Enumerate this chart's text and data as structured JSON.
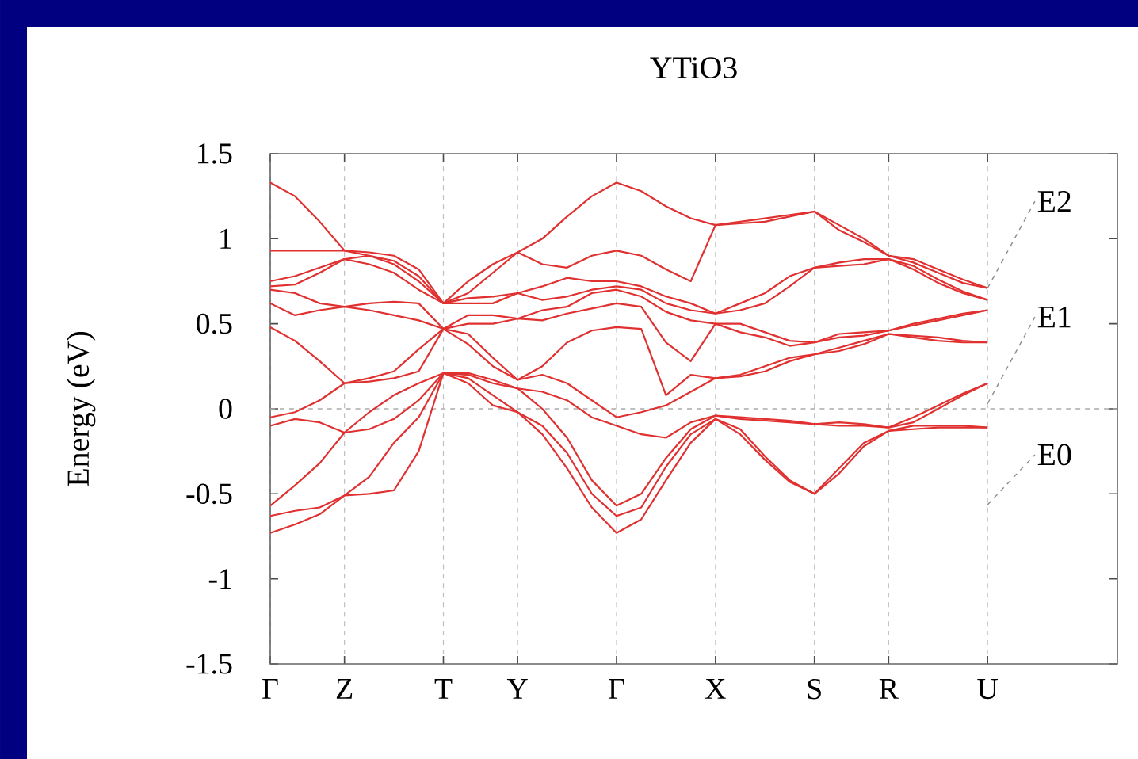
{
  "chart_data": {
    "type": "line",
    "title": "YTiO3",
    "ylabel": "Energy (eV)",
    "categories": [
      "Γ",
      null,
      null,
      "Z",
      null,
      null,
      null,
      "T",
      null,
      null,
      "Y",
      null,
      null,
      null,
      "Γ",
      null,
      null,
      null,
      "X",
      null,
      null,
      null,
      "S",
      null,
      null,
      "R",
      null,
      null,
      null,
      "U"
    ],
    "ylim": [
      -1.5,
      1.5
    ],
    "yticks": [
      -1.5,
      -1,
      -0.5,
      0,
      0.5,
      1,
      1.5
    ],
    "grid": "x",
    "marker": "none",
    "line_style": "solid",
    "ref_lines": [
      {
        "axis": "y",
        "value": 0,
        "color": "#aaaaaa",
        "line_style": "dashed"
      }
    ],
    "annotations": [
      {
        "text": "E2",
        "x": "U",
        "y": 0.71
      },
      {
        "text": "E1",
        "x": "U",
        "y": 0.03
      },
      "E0"
    ],
    "series": [
      {
        "color": "#e03030",
        "values": [
          -0.73,
          -0.68,
          -0.62,
          -0.51,
          -0.5,
          -0.48,
          -0.25,
          0.21,
          0.15,
          0.02,
          -0.02,
          -0.15,
          -0.35,
          -0.58,
          -0.73,
          -0.65,
          -0.42,
          -0.2,
          -0.06,
          -0.15,
          -0.3,
          -0.43,
          -0.5,
          -0.38,
          -0.22,
          -0.13,
          -0.12,
          -0.11,
          -0.11,
          -0.11
        ]
      },
      {
        "color": "#e03030",
        "values": [
          -0.63,
          -0.6,
          -0.58,
          -0.51,
          -0.4,
          -0.2,
          -0.05,
          0.21,
          0.18,
          0.08,
          -0.02,
          -0.1,
          -0.26,
          -0.5,
          -0.63,
          -0.58,
          -0.34,
          -0.15,
          -0.06,
          -0.12,
          -0.28,
          -0.42,
          -0.5,
          -0.35,
          -0.2,
          -0.13,
          -0.1,
          -0.1,
          -0.1,
          -0.11
        ]
      },
      {
        "color": "#e03030",
        "values": [
          -0.57,
          -0.45,
          -0.32,
          -0.14,
          -0.12,
          -0.06,
          0.05,
          0.21,
          0.2,
          0.15,
          0.12,
          0.0,
          -0.17,
          -0.42,
          -0.57,
          -0.5,
          -0.29,
          -0.12,
          -0.04,
          -0.06,
          -0.07,
          -0.08,
          -0.09,
          -0.1,
          -0.1,
          -0.11,
          -0.08,
          0.0,
          0.08,
          0.15
        ]
      },
      {
        "color": "#e03030",
        "values": [
          -0.1,
          -0.06,
          -0.08,
          -0.14,
          -0.02,
          0.08,
          0.15,
          0.21,
          0.21,
          0.17,
          0.12,
          0.1,
          0.05,
          -0.05,
          -0.1,
          -0.15,
          -0.17,
          -0.08,
          -0.04,
          -0.05,
          -0.06,
          -0.07,
          -0.09,
          -0.08,
          -0.09,
          -0.11,
          -0.05,
          0.02,
          0.09,
          0.15
        ]
      },
      {
        "color": "#e03030",
        "values": [
          -0.05,
          -0.02,
          0.05,
          0.15,
          0.16,
          0.18,
          0.22,
          0.47,
          0.38,
          0.25,
          0.17,
          0.2,
          0.15,
          0.05,
          -0.05,
          -0.02,
          0.02,
          0.1,
          0.18,
          0.19,
          0.22,
          0.28,
          0.32,
          0.34,
          0.38,
          0.44,
          0.42,
          0.4,
          0.39,
          0.39
        ]
      },
      {
        "color": "#e03030",
        "values": [
          0.48,
          0.4,
          0.28,
          0.15,
          0.18,
          0.22,
          0.35,
          0.47,
          0.44,
          0.3,
          0.17,
          0.25,
          0.39,
          0.46,
          0.48,
          0.47,
          0.08,
          0.2,
          0.18,
          0.2,
          0.25,
          0.3,
          0.32,
          0.36,
          0.4,
          0.44,
          0.43,
          0.42,
          0.4,
          0.39
        ]
      },
      {
        "color": "#e03030",
        "values": [
          0.62,
          0.55,
          0.58,
          0.6,
          0.58,
          0.55,
          0.52,
          0.47,
          0.5,
          0.5,
          0.53,
          0.52,
          0.56,
          0.59,
          0.62,
          0.6,
          0.39,
          0.28,
          0.5,
          0.45,
          0.42,
          0.37,
          0.39,
          0.42,
          0.43,
          0.46,
          0.49,
          0.52,
          0.55,
          0.58
        ]
      },
      {
        "color": "#e03030",
        "values": [
          0.7,
          0.68,
          0.62,
          0.6,
          0.62,
          0.63,
          0.62,
          0.47,
          0.55,
          0.55,
          0.53,
          0.58,
          0.6,
          0.68,
          0.7,
          0.66,
          0.57,
          0.52,
          0.5,
          0.5,
          0.45,
          0.4,
          0.39,
          0.44,
          0.45,
          0.46,
          0.5,
          0.53,
          0.56,
          0.58
        ]
      },
      {
        "color": "#e03030",
        "values": [
          0.72,
          0.73,
          0.8,
          0.88,
          0.85,
          0.8,
          0.7,
          0.62,
          0.62,
          0.62,
          0.68,
          0.64,
          0.66,
          0.7,
          0.72,
          0.7,
          0.62,
          0.58,
          0.56,
          0.58,
          0.62,
          0.72,
          0.83,
          0.84,
          0.85,
          0.88,
          0.82,
          0.74,
          0.68,
          0.64
        ]
      },
      {
        "color": "#e03030",
        "values": [
          0.75,
          0.78,
          0.83,
          0.88,
          0.9,
          0.85,
          0.75,
          0.62,
          0.65,
          0.66,
          0.68,
          0.72,
          0.77,
          0.75,
          0.75,
          0.72,
          0.66,
          0.62,
          0.56,
          0.62,
          0.68,
          0.78,
          0.83,
          0.86,
          0.88,
          0.88,
          0.84,
          0.76,
          0.69,
          0.64
        ]
      },
      {
        "color": "#e03030",
        "values": [
          0.93,
          0.93,
          0.93,
          0.93,
          0.9,
          0.87,
          0.78,
          0.62,
          0.68,
          0.8,
          0.92,
          0.85,
          0.83,
          0.9,
          0.93,
          0.9,
          0.82,
          0.75,
          1.08,
          1.09,
          1.1,
          1.13,
          1.16,
          1.05,
          0.98,
          0.9,
          0.86,
          0.8,
          0.74,
          0.71
        ]
      },
      {
        "color": "#e03030",
        "values": [
          1.33,
          1.25,
          1.1,
          0.93,
          0.92,
          0.9,
          0.82,
          0.62,
          0.75,
          0.85,
          0.92,
          1.0,
          1.13,
          1.25,
          1.33,
          1.28,
          1.19,
          1.12,
          1.08,
          1.1,
          1.12,
          1.14,
          1.16,
          1.08,
          1.0,
          0.9,
          0.88,
          0.82,
          0.76,
          0.71
        ]
      }
    ]
  }
}
